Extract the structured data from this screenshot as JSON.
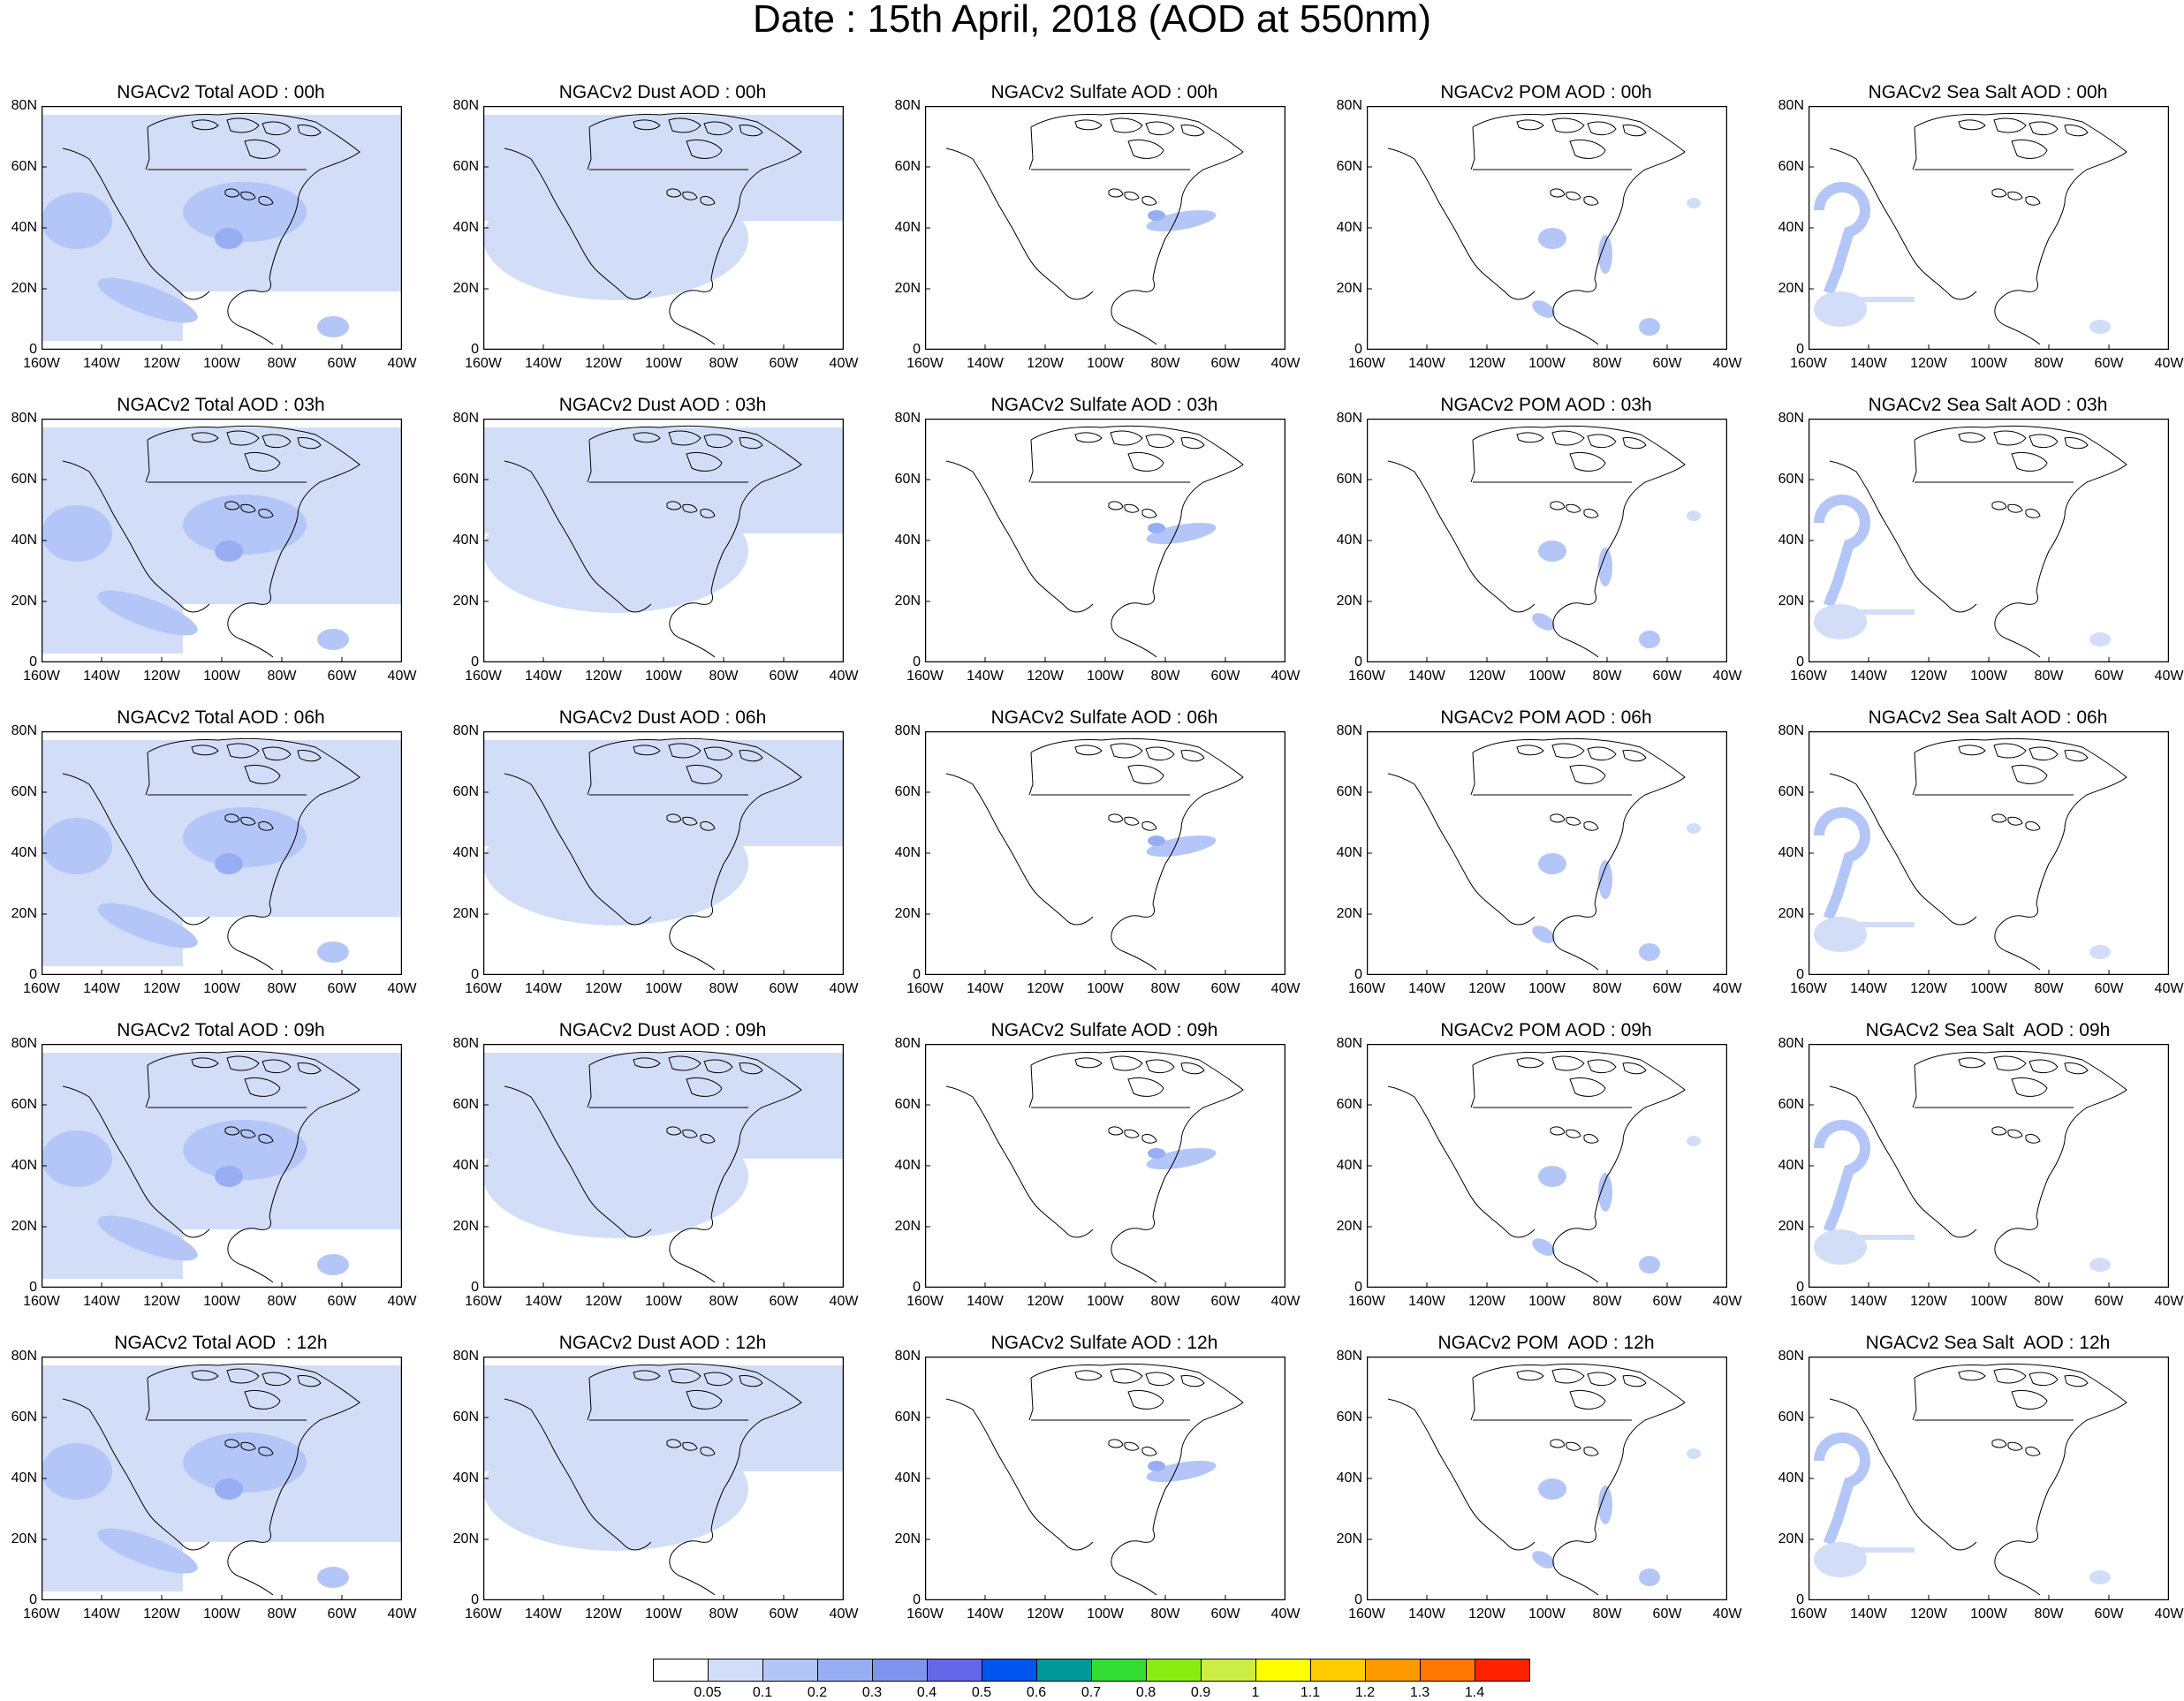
{
  "title": "Date : 15th April, 2018 (AOD at 550nm)",
  "lat_ticks": [
    "80N",
    "60N",
    "40N",
    "20N",
    "0"
  ],
  "lon_ticks": [
    "160W",
    "140W",
    "120W",
    "100W",
    "80W",
    "60W",
    "40W"
  ],
  "panels": [
    [
      "NGACv2 Total AOD : 00h",
      "NGACv2 Dust AOD : 00h",
      "NGACv2 Sulfate AOD : 00h",
      "NGACv2 POM AOD : 00h",
      "NGACv2 Sea Salt AOD : 00h"
    ],
    [
      "NGACv2 Total AOD : 03h",
      "NGACv2 Dust AOD : 03h",
      "NGACv2 Sulfate AOD : 03h",
      "NGACv2 POM AOD : 03h",
      "NGACv2 Sea Salt AOD : 03h"
    ],
    [
      "NGACv2 Total AOD : 06h",
      "NGACv2 Dust AOD : 06h",
      "NGACv2 Sulfate AOD : 06h",
      "NGACv2 POM AOD : 06h",
      "NGACv2 Sea Salt AOD : 06h"
    ],
    [
      "NGACv2 Total AOD : 09h",
      "NGACv2 Dust AOD : 09h",
      "NGACv2 Sulfate AOD : 09h",
      "NGACv2 POM AOD : 09h",
      "NGACv2 Sea Salt  AOD : 09h"
    ],
    [
      "NGACv2 Total AOD  : 12h",
      "NGACv2 Dust AOD : 12h",
      "NGACv2 Sulfate AOD : 12h",
      "NGACv2 POM  AOD : 12h",
      "NGACv2 Sea Salt  AOD : 12h"
    ]
  ],
  "colorbar": {
    "labels": [
      "0.05",
      "0.1",
      "0.2",
      "0.3",
      "0.4",
      "0.5",
      "0.6",
      "0.7",
      "0.8",
      "0.9",
      "1",
      "1.1",
      "1.2",
      "1.3",
      "1.4"
    ],
    "colors": [
      "#ffffff",
      "#d2def8",
      "#b4c6f7",
      "#97aef4",
      "#7f94ef",
      "#6666e8",
      "#0055ee",
      "#009999",
      "#33dd33",
      "#88ee11",
      "#ccee44",
      "#ffff00",
      "#ffcc00",
      "#ff9900",
      "#ff7700",
      "#ff2200"
    ]
  },
  "map_colors": {
    "level1": "#d2def8",
    "level2": "#b4c6f7",
    "level3": "#97aef4",
    "coast": "#000000"
  }
}
